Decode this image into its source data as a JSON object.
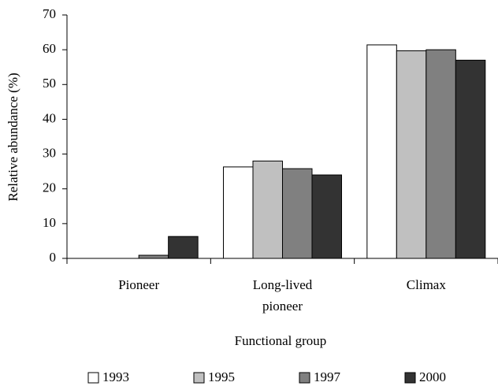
{
  "chart_data": {
    "type": "bar",
    "x_label": "Functional group",
    "y_label": "Relative abundance (%)",
    "categories": [
      "Pioneer",
      "Long-lived pioneer",
      "Climax"
    ],
    "series": [
      {
        "name": "1993",
        "color": "#ffffff",
        "values": [
          0,
          26.3,
          61.4
        ]
      },
      {
        "name": "1995",
        "color": "#c0c0c0",
        "values": [
          0,
          28,
          59.7
        ]
      },
      {
        "name": "1997",
        "color": "#808080",
        "values": [
          0.9,
          25.8,
          60
        ]
      },
      {
        "name": "2000",
        "color": "#333333",
        "values": [
          6.3,
          24,
          57
        ]
      }
    ],
    "ylim": [
      0,
      70
    ],
    "yticks": [
      0,
      10,
      20,
      30,
      40,
      50,
      60,
      70
    ]
  }
}
